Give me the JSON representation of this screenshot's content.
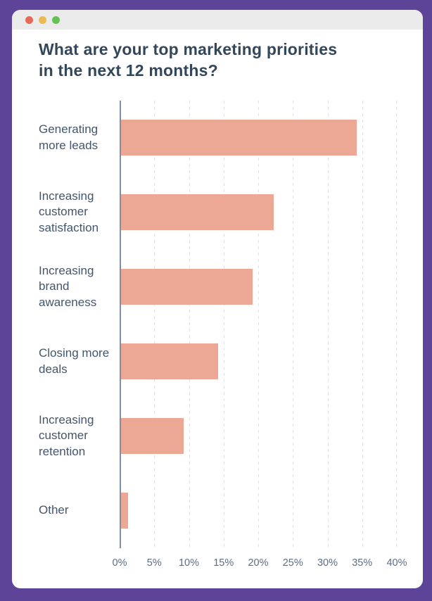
{
  "window": {
    "frame_color": "#5e4499",
    "titlebar_color": "#ebebeb",
    "controls": [
      {
        "name": "close",
        "color": "#e8695a"
      },
      {
        "name": "minimize",
        "color": "#eeb94f"
      },
      {
        "name": "zoom",
        "color": "#66c158"
      }
    ]
  },
  "chart_data": {
    "type": "bar",
    "orientation": "horizontal",
    "title": "What are your top marketing priorities in the next 12 months?",
    "categories": [
      "Generating more leads",
      "Increasing customer satisfaction",
      "Increasing brand awareness",
      "Closing more deals",
      "Increasing customer retention",
      "Other"
    ],
    "values": [
      34,
      22,
      19,
      14,
      9,
      1
    ],
    "unit": "%",
    "x_ticks": [
      "0%",
      "5%",
      "10%",
      "15%",
      "20%",
      "25%",
      "30%",
      "35%",
      "40%"
    ],
    "xlim": [
      0,
      40
    ],
    "grid": "vertical dashed gridlines every 5%",
    "legend": "none",
    "bar_color": "#eca795",
    "axis_color": "#7e90a8",
    "gridline_color": "#dce3ed",
    "title_color": "#33475b",
    "label_color": "#43566c",
    "tick_color": "#5c6e84"
  }
}
